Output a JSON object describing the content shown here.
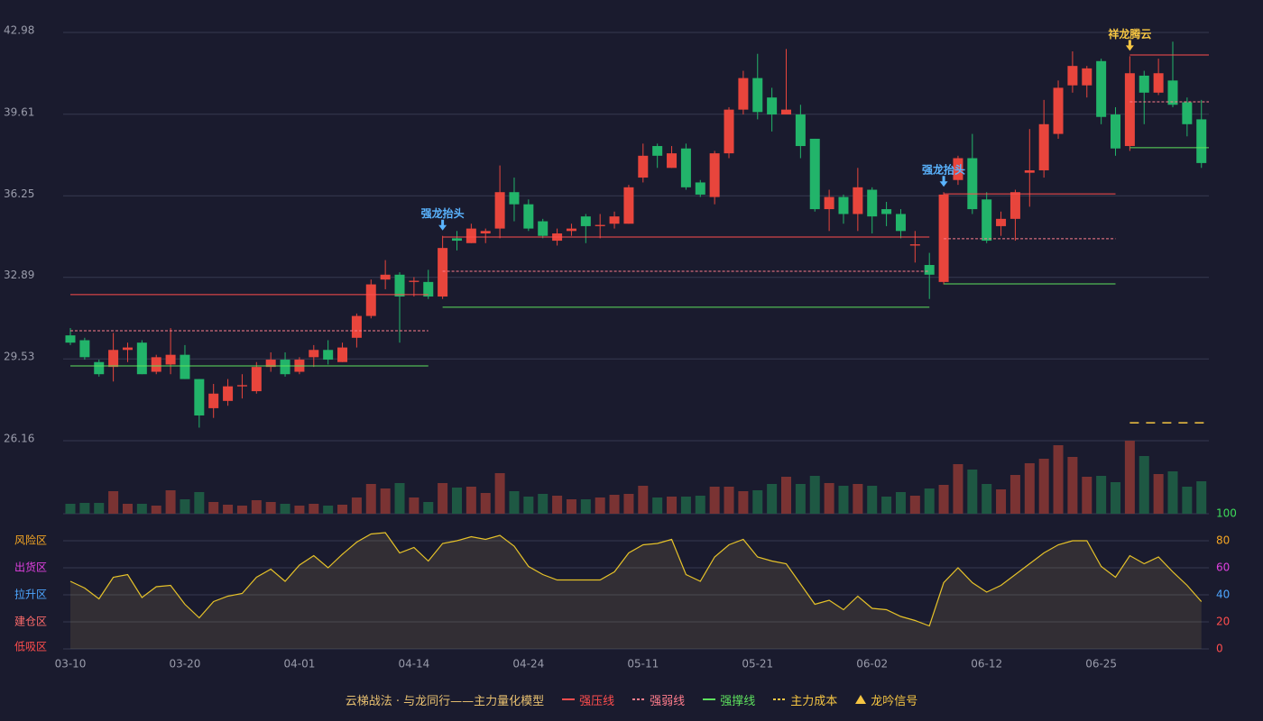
{
  "chart_data": [
    {
      "type": "candlestick",
      "title": "云梯战法 · 与龙同行——主力量化模型",
      "up_color": "#e8453c",
      "down_color": "#22b46a",
      "x": [
        "03-10",
        null,
        null,
        null,
        null,
        null,
        null,
        null,
        "03-20",
        null,
        null,
        null,
        null,
        null,
        null,
        null,
        "04-01",
        null,
        null,
        null,
        null,
        null,
        null,
        null,
        "04-14",
        null,
        null,
        null,
        null,
        null,
        null,
        null,
        "04-24",
        null,
        null,
        null,
        null,
        null,
        null,
        null,
        "05-11",
        null,
        null,
        null,
        null,
        null,
        null,
        null,
        "05-21",
        null,
        null,
        null,
        null,
        null,
        null,
        null,
        "06-02",
        null,
        null,
        null,
        null,
        null,
        null,
        null,
        "06-12",
        null,
        null,
        null,
        null,
        null,
        null,
        null,
        "06-25",
        null,
        null,
        null,
        null,
        null,
        null,
        null
      ],
      "open": [
        30.5,
        30.3,
        29.4,
        29.2,
        29.9,
        30.2,
        29.0,
        29.3,
        29.7,
        28.7,
        27.5,
        27.8,
        28.4,
        28.2,
        29.2,
        29.5,
        29.0,
        29.6,
        29.9,
        29.4,
        30.4,
        31.3,
        32.8,
        33.0,
        32.7,
        32.7,
        32.1,
        34.5,
        34.3,
        34.7,
        34.9,
        36.4,
        35.9,
        35.2,
        34.4,
        34.8,
        35.4,
        35.0,
        35.1,
        35.1,
        37.0,
        38.3,
        37.4,
        38.2,
        36.8,
        36.2,
        38.0,
        39.8,
        41.1,
        40.3,
        39.6,
        39.6,
        38.6,
        35.7,
        36.2,
        35.5,
        36.5,
        35.7,
        35.5,
        34.2,
        33.4,
        32.7,
        36.9,
        37.8,
        36.1,
        35.0,
        35.3,
        37.2,
        37.3,
        38.8,
        40.8,
        40.8,
        41.8,
        39.6,
        38.3,
        41.2,
        40.5,
        41.0,
        40.1,
        39.4
      ],
      "high": [
        30.8,
        30.4,
        29.5,
        30.6,
        30.2,
        30.3,
        29.7,
        30.8,
        30.1,
        28.7,
        28.5,
        28.7,
        28.9,
        29.4,
        29.8,
        29.8,
        29.6,
        30.1,
        30.3,
        30.2,
        31.4,
        32.8,
        33.6,
        33.1,
        32.9,
        33.2,
        34.6,
        34.8,
        35.1,
        34.9,
        37.5,
        37.0,
        36.1,
        35.3,
        34.9,
        35.1,
        35.5,
        35.5,
        35.6,
        36.7,
        38.4,
        38.4,
        38.3,
        38.4,
        36.9,
        38.1,
        39.9,
        41.4,
        42.1,
        40.7,
        42.3,
        40.0,
        38.6,
        36.5,
        36.3,
        37.4,
        36.6,
        36.0,
        35.7,
        34.8,
        33.9,
        36.4,
        37.9,
        38.8,
        36.4,
        35.6,
        36.5,
        39.0,
        40.2,
        41.0,
        42.2,
        41.6,
        41.9,
        39.9,
        42.0,
        41.4,
        41.9,
        42.6,
        40.3,
        40.2
      ],
      "low": [
        30.1,
        29.5,
        28.8,
        28.6,
        29.4,
        28.9,
        28.9,
        28.9,
        28.7,
        26.7,
        27.1,
        27.6,
        27.9,
        28.1,
        29.0,
        28.8,
        28.9,
        29.2,
        29.3,
        29.4,
        30.0,
        31.2,
        32.4,
        30.2,
        32.1,
        32.0,
        32.0,
        34.0,
        34.3,
        34.3,
        34.5,
        35.2,
        34.8,
        34.5,
        34.2,
        34.6,
        34.3,
        34.5,
        34.9,
        35.1,
        36.8,
        37.4,
        37.4,
        36.5,
        36.2,
        35.9,
        37.8,
        39.6,
        39.4,
        38.9,
        39.6,
        37.8,
        35.6,
        34.8,
        35.1,
        34.8,
        34.7,
        35.0,
        34.5,
        33.5,
        32.0,
        32.6,
        36.7,
        35.5,
        34.3,
        34.6,
        34.4,
        35.8,
        37.0,
        38.6,
        40.5,
        40.3,
        39.2,
        37.9,
        38.1,
        39.2,
        40.4,
        39.9,
        38.7,
        37.4
      ],
      "close": [
        30.2,
        29.6,
        28.9,
        29.9,
        30.0,
        28.9,
        29.6,
        29.7,
        28.7,
        27.2,
        28.1,
        28.4,
        28.45,
        29.2,
        29.5,
        28.9,
        29.5,
        29.9,
        29.5,
        30.0,
        31.3,
        32.6,
        33.0,
        32.1,
        32.75,
        32.1,
        34.1,
        34.4,
        34.9,
        34.8,
        36.4,
        35.9,
        34.9,
        34.6,
        34.7,
        34.9,
        35.0,
        35.05,
        35.4,
        36.6,
        37.9,
        37.9,
        38.0,
        36.6,
        36.3,
        38.0,
        39.8,
        41.1,
        39.7,
        39.6,
        39.8,
        38.3,
        35.7,
        36.2,
        35.5,
        36.6,
        35.4,
        35.5,
        34.8,
        34.25,
        33.0,
        36.3,
        37.8,
        35.7,
        34.4,
        35.3,
        36.4,
        37.3,
        39.2,
        40.7,
        41.6,
        41.5,
        39.5,
        38.2,
        41.3,
        40.5,
        41.3,
        40.0,
        39.2,
        37.6
      ],
      "ylim": [
        26.16,
        42.98
      ],
      "yticks": [
        26.16,
        29.53,
        32.89,
        36.25,
        39.61,
        42.98
      ],
      "grid": true,
      "series": [
        {
          "name": "强压线",
          "color": "#ff4d4d",
          "style": "solid",
          "values": [
            32.18,
            32.18,
            32.18,
            32.18,
            32.18,
            32.18,
            32.18,
            32.18,
            32.18,
            32.18,
            32.18,
            32.18,
            32.18,
            32.18,
            32.18,
            32.18,
            32.18,
            32.18,
            32.18,
            32.18,
            32.18,
            32.18,
            32.18,
            32.18,
            32.18,
            32.18,
            34.55,
            34.55,
            34.55,
            34.55,
            34.55,
            34.55,
            34.55,
            34.55,
            34.55,
            34.55,
            34.55,
            34.55,
            34.55,
            34.55,
            34.55,
            34.55,
            34.55,
            34.55,
            34.55,
            34.55,
            34.55,
            34.55,
            34.55,
            34.55,
            34.55,
            34.55,
            34.55,
            34.55,
            34.55,
            34.55,
            34.55,
            34.55,
            34.55,
            34.55,
            34.55,
            36.33,
            36.33,
            36.33,
            36.33,
            36.33,
            36.33,
            36.33,
            36.33,
            36.33,
            36.33,
            36.33,
            36.33,
            36.33,
            42.05,
            42.05,
            42.05,
            42.05,
            42.05,
            42.05
          ]
        },
        {
          "name": "强弱线",
          "color": "#ff7d8c",
          "style": "dashed",
          "values": [
            30.69,
            30.69,
            30.69,
            30.69,
            30.69,
            30.69,
            30.69,
            30.69,
            30.69,
            30.69,
            30.69,
            30.69,
            30.69,
            30.69,
            30.69,
            30.69,
            30.69,
            30.69,
            30.69,
            30.69,
            30.69,
            30.69,
            30.69,
            30.69,
            30.69,
            30.69,
            33.14,
            33.14,
            33.14,
            33.14,
            33.14,
            33.14,
            33.14,
            33.14,
            33.14,
            33.14,
            33.14,
            33.14,
            33.14,
            33.14,
            33.14,
            33.14,
            33.14,
            33.14,
            33.14,
            33.14,
            33.14,
            33.14,
            33.14,
            33.14,
            33.14,
            33.14,
            33.14,
            33.14,
            33.14,
            33.14,
            33.14,
            33.14,
            33.14,
            33.14,
            33.14,
            34.48,
            34.48,
            34.48,
            34.48,
            34.48,
            34.48,
            34.48,
            34.48,
            34.48,
            34.48,
            34.48,
            34.48,
            34.48,
            40.12,
            40.12,
            40.12,
            40.12,
            40.12,
            40.12
          ]
        },
        {
          "name": "强撑线",
          "color": "#5de05d",
          "style": "solid",
          "values": [
            29.24,
            29.24,
            29.24,
            29.24,
            29.24,
            29.24,
            29.24,
            29.24,
            29.24,
            29.24,
            29.24,
            29.24,
            29.24,
            29.24,
            29.24,
            29.24,
            29.24,
            29.24,
            29.24,
            29.24,
            29.24,
            29.24,
            29.24,
            29.24,
            29.24,
            29.24,
            31.66,
            31.66,
            31.66,
            31.66,
            31.66,
            31.66,
            31.66,
            31.66,
            31.66,
            31.66,
            31.66,
            31.66,
            31.66,
            31.66,
            31.66,
            31.66,
            31.66,
            31.66,
            31.66,
            31.66,
            31.66,
            31.66,
            31.66,
            31.66,
            31.66,
            31.66,
            31.66,
            31.66,
            31.66,
            31.66,
            31.66,
            31.66,
            31.66,
            31.66,
            31.66,
            32.62,
            32.62,
            32.62,
            32.62,
            32.62,
            32.62,
            32.62,
            32.62,
            32.62,
            32.62,
            32.62,
            32.62,
            32.62,
            38.23,
            38.23,
            38.23,
            38.23,
            38.23,
            38.23
          ]
        },
        {
          "name": "主力成本",
          "color": "#f5c542",
          "style": "dashed",
          "values": [
            null,
            null,
            null,
            null,
            null,
            null,
            null,
            null,
            null,
            null,
            null,
            null,
            null,
            null,
            null,
            null,
            null,
            null,
            null,
            null,
            null,
            null,
            null,
            null,
            null,
            null,
            null,
            null,
            null,
            null,
            null,
            null,
            null,
            null,
            null,
            null,
            null,
            null,
            null,
            null,
            null,
            null,
            null,
            null,
            null,
            null,
            null,
            null,
            null,
            null,
            null,
            null,
            null,
            null,
            null,
            null,
            null,
            null,
            null,
            null,
            null,
            null,
            null,
            null,
            null,
            null,
            null,
            null,
            null,
            null,
            null,
            null,
            null,
            null,
            26.9,
            26.9,
            26.9,
            26.9,
            26.9,
            26.9
          ]
        }
      ],
      "signals": {
        "name": "龙吟信号",
        "color": "#f5c542",
        "items": [
          {
            "text": "强龙抬头",
            "index": 26,
            "color": "#5ab4ff"
          },
          {
            "text": "强龙抬头",
            "index": 61,
            "color": "#5ab4ff"
          },
          {
            "text": "祥龙腾云",
            "index": 74,
            "color": "#f5c542"
          }
        ]
      }
    },
    {
      "type": "bar",
      "values": [
        11,
        12,
        12,
        25,
        11,
        11,
        9,
        26,
        16,
        24,
        13,
        10,
        9,
        15,
        13,
        11,
        9,
        11,
        9,
        10,
        18,
        33,
        28,
        34,
        18,
        13,
        34,
        29,
        30,
        23,
        45,
        25,
        19,
        22,
        20,
        16,
        16,
        18,
        21,
        22,
        31,
        18,
        19,
        19,
        20,
        30,
        30,
        25,
        26,
        33,
        41,
        33,
        42,
        34,
        31,
        33,
        31,
        19,
        24,
        20,
        28,
        32,
        55,
        49,
        33,
        27,
        43,
        56,
        61,
        76,
        63,
        41,
        42,
        35,
        81,
        64,
        44,
        47,
        30,
        36
      ],
      "up_color": "#7a3333",
      "down_color": "#1e5843"
    },
    {
      "type": "line",
      "color": "#e6c229",
      "values": [
        50,
        45,
        37,
        53,
        55,
        38,
        46,
        47,
        33,
        23,
        35,
        39,
        41,
        53,
        59,
        50,
        62,
        69,
        60,
        70,
        79,
        85,
        86,
        71,
        75,
        65,
        78,
        80,
        83,
        81,
        84,
        76,
        61,
        55,
        51,
        51,
        51,
        51,
        57,
        71,
        77,
        78,
        81,
        55,
        50,
        68,
        77,
        81,
        68,
        65,
        63,
        48,
        33,
        36,
        29,
        39,
        30,
        29,
        24,
        21,
        17,
        49,
        60,
        49,
        42,
        47,
        55,
        63,
        71,
        77,
        80,
        80,
        61,
        53,
        69,
        63,
        68,
        57,
        47,
        35
      ],
      "ylim": [
        0,
        100
      ],
      "yticks": [
        0,
        20,
        40,
        60,
        80,
        100
      ],
      "ytick_colors": [
        "#ff4d4d",
        "#ff4d4d",
        "#4da6ff",
        "#e040e0",
        "#f5a623",
        "#3ddc5a"
      ],
      "zones": [
        {
          "label": "风险区",
          "value": 80,
          "color": "#f5a623"
        },
        {
          "label": "出货区",
          "value": 60,
          "color": "#e040e0"
        },
        {
          "label": "拉升区",
          "value": 40,
          "color": "#4da6ff"
        },
        {
          "label": "建仓区",
          "value": 20,
          "color": "#ff6b6b"
        },
        {
          "label": "低吸区",
          "value": 0,
          "color": "#ff4d4d"
        }
      ]
    }
  ]
}
